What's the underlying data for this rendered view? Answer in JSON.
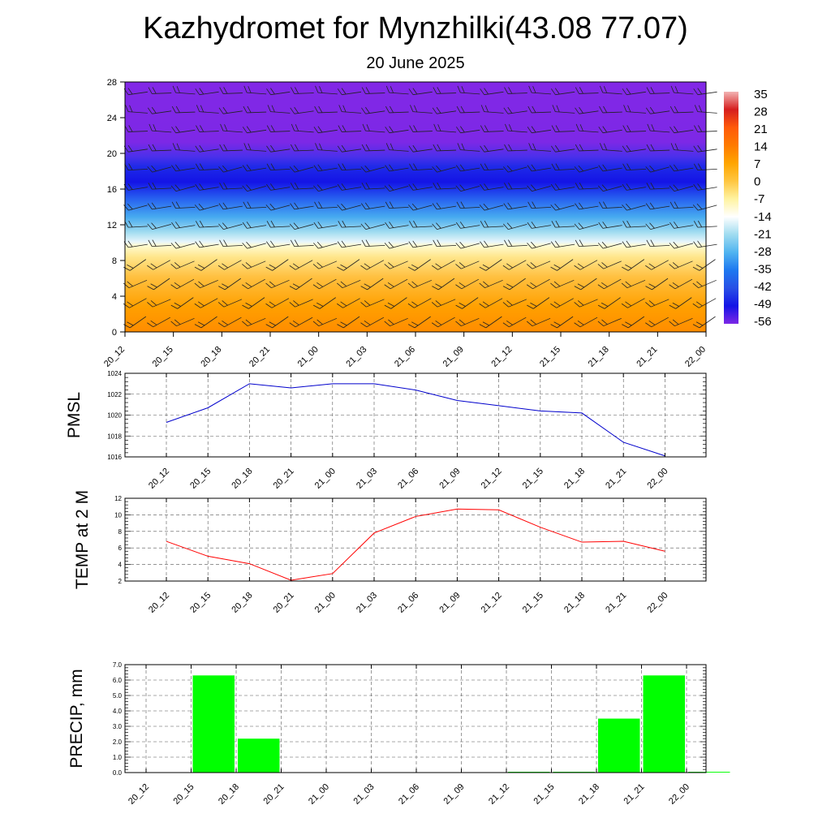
{
  "title": "Kazhydromet for Mynzhilki(43.08 77.07)",
  "subtitle": "20 June 2025",
  "chart_data": [
    {
      "type": "heatmap",
      "description_of_fill": "temperature cross-section vs height with wind barbs",
      "x_ticks": [
        "20_12",
        "20_15",
        "20_18",
        "20_21",
        "21_00",
        "21_03",
        "21_06",
        "21_09",
        "21_12",
        "21_15",
        "21_18",
        "21_21",
        "22_00"
      ],
      "y_ticks": [
        0,
        4,
        8,
        12,
        16,
        20,
        24,
        28
      ],
      "ylim": [
        0,
        28
      ],
      "colorbar": {
        "labels": [
          "35",
          "28",
          "21",
          "14",
          "7",
          "0",
          "-7",
          "-14",
          "-21",
          "-28",
          "-35",
          "-42",
          "-49",
          "-56"
        ],
        "colors": [
          "#f2b3b3",
          "#d61e1e",
          "#ff5a0a",
          "#ff7a00",
          "#ffa500",
          "#ffc640",
          "#fff3a0",
          "#ffffff",
          "#a0dcf0",
          "#50b4f0",
          "#1e78f0",
          "#2850e6",
          "#1414e6",
          "#7d28e6"
        ]
      }
    },
    {
      "type": "line",
      "ylabel": "PMSL",
      "categories": [
        "20_12",
        "20_15",
        "20_18",
        "20_21",
        "21_00",
        "21_03",
        "21_06",
        "21_09",
        "21_12",
        "21_15",
        "21_18",
        "21_21",
        "22_00"
      ],
      "values": [
        1019.3,
        1020.7,
        1023.0,
        1022.6,
        1023.0,
        1023.0,
        1022.4,
        1021.4,
        1020.9,
        1020.4,
        1020.2,
        1017.4,
        1016.1
      ],
      "ylim": [
        1016,
        1024
      ],
      "y_ticks": [
        1016,
        1018,
        1020,
        1022,
        1024
      ],
      "color": "#0000cc",
      "grid": true
    },
    {
      "type": "line",
      "ylabel": "TEMP at 2 M",
      "categories": [
        "20_12",
        "20_15",
        "20_18",
        "20_21",
        "21_00",
        "21_03",
        "21_06",
        "21_09",
        "21_12",
        "21_15",
        "21_18",
        "21_21",
        "22_00"
      ],
      "values": [
        6.8,
        5.0,
        4.1,
        2.1,
        2.9,
        7.8,
        9.8,
        10.7,
        10.6,
        8.5,
        6.7,
        6.8,
        5.6
      ],
      "ylim": [
        2,
        12
      ],
      "y_ticks": [
        2,
        4,
        6,
        8,
        10,
        12
      ],
      "color": "#ff0000",
      "grid": true
    },
    {
      "type": "bar",
      "ylabel": "PRECIP, mm",
      "categories": [
        "20_12",
        "20_15",
        "20_18",
        "20_21",
        "21_00",
        "21_03",
        "21_06",
        "21_09",
        "21_12",
        "21_15",
        "21_18",
        "21_21",
        "22_00"
      ],
      "values": [
        0,
        6.3,
        2.2,
        0,
        0,
        0,
        0,
        0,
        0.05,
        0.05,
        3.5,
        6.3,
        0.05
      ],
      "ylim": [
        0,
        7
      ],
      "y_ticks": [
        "0.0",
        "1.0",
        "2.0",
        "3.0",
        "4.0",
        "5.0",
        "6.0",
        "7.0"
      ],
      "color": "#00ff00",
      "grid": true
    }
  ]
}
